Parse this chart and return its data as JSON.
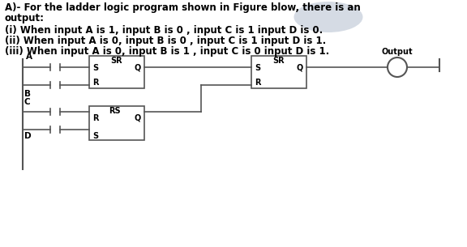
{
  "title_line1": "A)- For the ladder logic program shown in Figure blow, there is an",
  "title_line2": "output:",
  "line_i": "(i) When input A is 1, input B is 0 , input C is 1 input D is 0.",
  "line_ii": "(ii) When input A is 0, input B is 0 , input C is 1 input D is 1.",
  "line_iii": "(iii) When input A is 0, input B is 1 , input C is 0 input D is 1.",
  "text_color": "#000000",
  "box_color": "#555555",
  "line_color": "#555555",
  "font_size_title": 8.5,
  "font_size_label": 7.5,
  "font_size_box": 7.0
}
